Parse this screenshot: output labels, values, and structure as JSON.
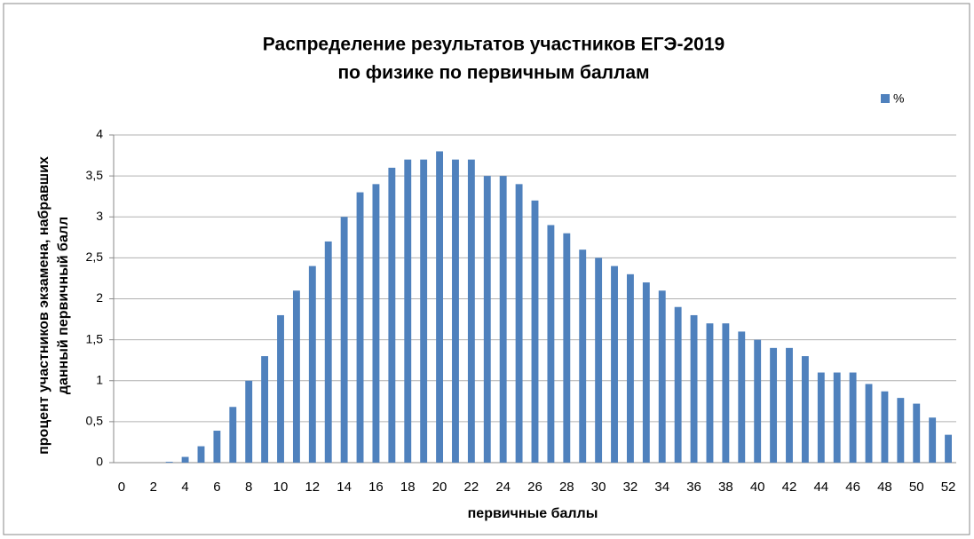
{
  "chart_data": {
    "type": "bar",
    "title": [
      "Распределение результатов участников ЕГЭ-2019",
      "по физике по первичным баллам"
    ],
    "x_label": "первичные баллы",
    "y_label": [
      "процент участников экзамена, набравших",
      "данный первичный балл"
    ],
    "categories": [
      "0",
      null,
      "2",
      null,
      "4",
      null,
      "6",
      null,
      "8",
      null,
      "10",
      null,
      "12",
      null,
      "14",
      null,
      "16",
      null,
      "18",
      null,
      "20",
      null,
      "22",
      null,
      "24",
      null,
      "26",
      null,
      "28",
      null,
      "30",
      null,
      "32",
      null,
      "34",
      null,
      "36",
      null,
      "38",
      null,
      "40",
      null,
      "42",
      null,
      "44",
      null,
      "46",
      null,
      "48",
      null,
      "50",
      null,
      "52"
    ],
    "series": [
      {
        "name": "%",
        "color": "#4f81bd",
        "values": [
          0,
          0,
          0,
          0.01,
          0.07,
          0.2,
          0.39,
          0.68,
          1.0,
          1.3,
          1.8,
          2.1,
          2.4,
          2.7,
          3.0,
          3.3,
          3.4,
          3.6,
          3.7,
          3.7,
          3.8,
          3.7,
          3.7,
          3.5,
          3.5,
          3.4,
          3.2,
          2.9,
          2.8,
          2.6,
          2.5,
          2.4,
          2.3,
          2.2,
          2.1,
          1.9,
          1.8,
          1.7,
          1.7,
          1.6,
          1.5,
          1.4,
          1.4,
          1.3,
          1.1,
          1.1,
          1.1,
          0.96,
          0.87,
          0.79,
          0.72,
          0.55,
          0.34
        ]
      }
    ],
    "ylim": [
      0,
      4
    ],
    "yticks": [
      0,
      {
        "value": 0.5,
        "label": "0,5"
      },
      1,
      {
        "value": 1.5,
        "label": "1,5"
      },
      2,
      {
        "value": 2.5,
        "label": "2,5"
      },
      3,
      {
        "value": 3.5,
        "label": "3,5"
      },
      4
    ],
    "grid": true,
    "legend": "top-right"
  }
}
